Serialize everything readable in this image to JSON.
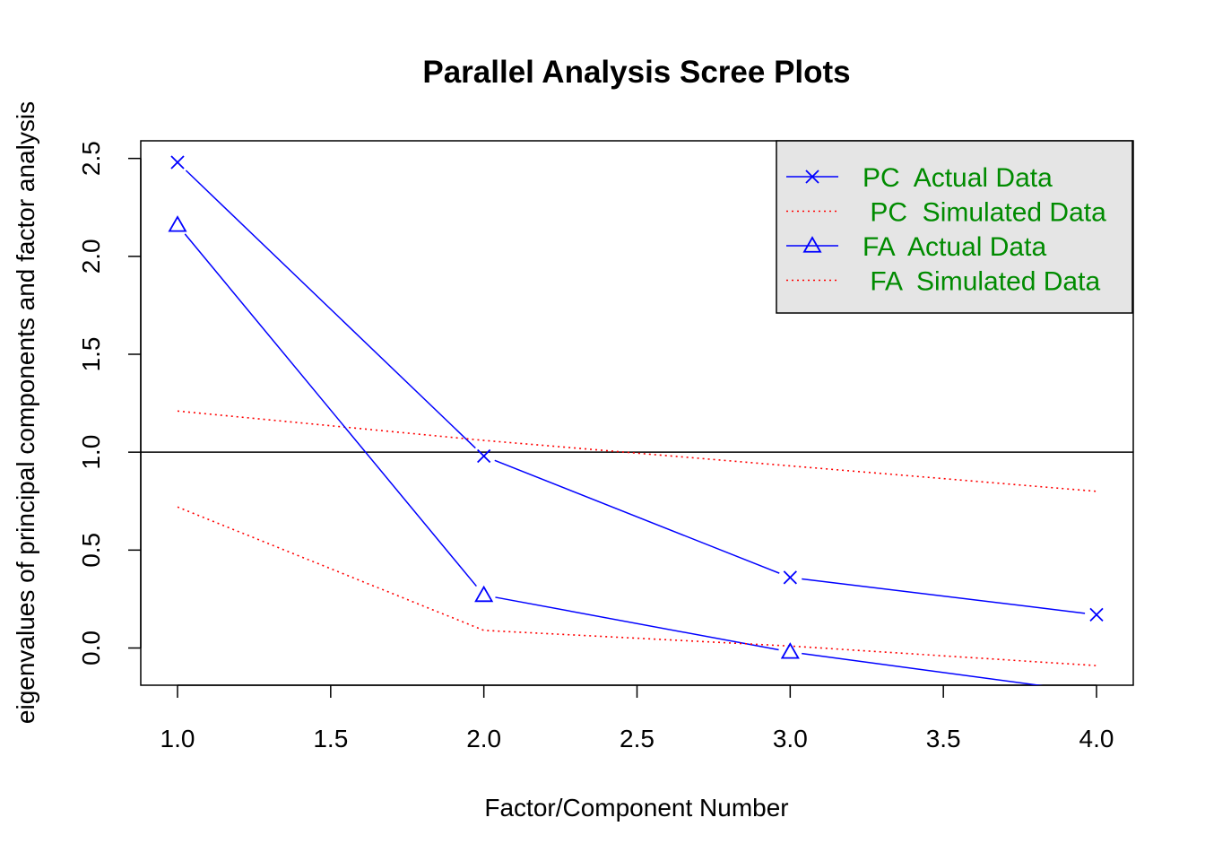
{
  "chart_data": {
    "type": "line",
    "title": "Parallel Analysis Scree Plots",
    "xlabel": "Factor/Component Number",
    "ylabel": "eigenvalues of principal components and factor analysis",
    "xlim": [
      0.88,
      4.12
    ],
    "ylim": [
      -0.19,
      2.59
    ],
    "x_ticks": [
      1.0,
      1.5,
      2.0,
      2.5,
      3.0,
      3.5,
      4.0
    ],
    "x_tick_labels": [
      "1.0",
      "1.5",
      "2.0",
      "2.5",
      "3.0",
      "3.5",
      "4.0"
    ],
    "y_ticks": [
      0.0,
      0.5,
      1.0,
      1.5,
      2.0,
      2.5
    ],
    "y_tick_labels": [
      "0.0",
      "0.5",
      "1.0",
      "1.5",
      "2.0",
      "2.5"
    ],
    "reference_line": {
      "y": 1.0,
      "color": "#000000"
    },
    "x": [
      1,
      2,
      3,
      4
    ],
    "series": [
      {
        "name": "PC  Actual Data",
        "values": [
          2.48,
          0.98,
          0.36,
          0.17
        ],
        "color": "#0000ff",
        "style": "solid",
        "marker": "x"
      },
      {
        "name": " PC  Simulated Data",
        "values": [
          1.21,
          1.06,
          0.93,
          0.8
        ],
        "color": "#ff0000",
        "style": "dotted",
        "marker": "none"
      },
      {
        "name": "FA  Actual Data",
        "values": [
          2.16,
          0.27,
          -0.02,
          -0.23
        ],
        "color": "#0000ff",
        "style": "solid",
        "marker": "triangle"
      },
      {
        "name": " FA  Simulated Data",
        "values": [
          0.72,
          0.09,
          0.01,
          -0.09
        ],
        "color": "#ff0000",
        "style": "dotted",
        "marker": "none"
      }
    ],
    "legend": {
      "position": "top-right",
      "background": "#e5e5e5",
      "text_color": "#008b00"
    },
    "grid": false
  }
}
